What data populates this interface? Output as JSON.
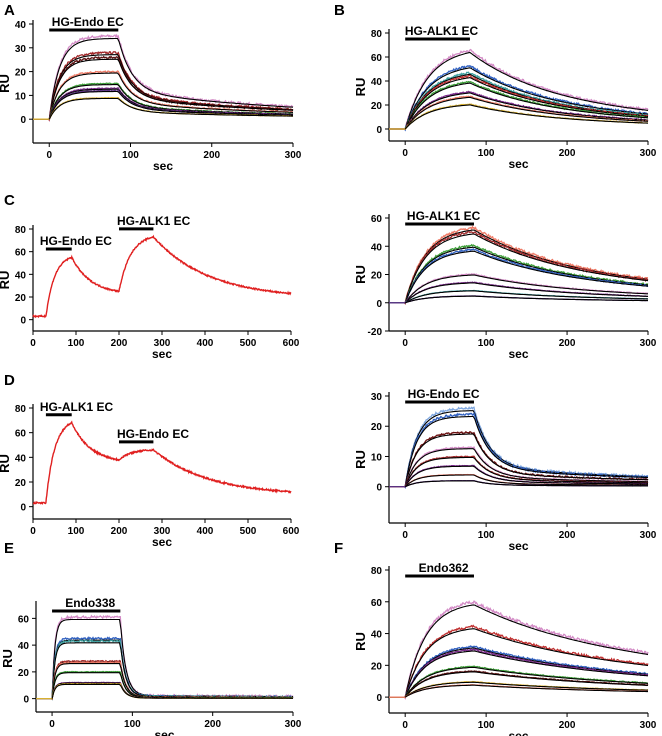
{
  "chart_data": [
    {
      "panel": "A",
      "type": "line",
      "xlabel": "sec",
      "ylabel": "RU",
      "xlim": [
        -20,
        300
      ],
      "ylim": [
        -10,
        40
      ],
      "xticks": [
        0,
        100,
        200,
        300
      ],
      "yticks": [
        0,
        10,
        20,
        30,
        40
      ],
      "injections": [
        {
          "label": "HG-Endo EC",
          "start": 0,
          "end": 85
        }
      ],
      "series": [
        {
          "color": "#d38bc6",
          "rmax": 35
        },
        {
          "color": "#a0282a",
          "rmax": 28
        },
        {
          "color": "#5a1010",
          "rmax": 26
        },
        {
          "color": "#ee7a66",
          "rmax": 20
        },
        {
          "color": "#3f9f3a",
          "rmax": 15
        },
        {
          "color": "#7a2a8a",
          "rmax": 13
        },
        {
          "color": "#5a3080",
          "rmax": 12
        },
        {
          "color": "#d8b030",
          "rmax": 9
        }
      ],
      "kinetics": {
        "ka": 0.08,
        "kd_fast": 0.06,
        "kd_slow": 0.004,
        "slow_fraction": 0.35
      }
    },
    {
      "panel": "B",
      "type": "line",
      "xlabel": "sec",
      "ylabel": "RU",
      "xlim": [
        -20,
        300
      ],
      "ylim": [
        -10,
        80
      ],
      "xticks": [
        0,
        100,
        200,
        300
      ],
      "yticks": [
        0,
        20,
        40,
        60,
        80
      ],
      "injections": [
        {
          "label": "HG-ALK1 EC",
          "start": 0,
          "end": 80
        }
      ],
      "series": [
        {
          "color": "#d38bc6",
          "rmax": 70
        },
        {
          "color": "#3060c0",
          "rmax": 56
        },
        {
          "color": "#40a0a0",
          "rmax": 50
        },
        {
          "color": "#c03030",
          "rmax": 47
        },
        {
          "color": "#3f9f3a",
          "rmax": 42
        },
        {
          "color": "#7a2a8a",
          "rmax": 33
        },
        {
          "color": "#ee7a66",
          "rmax": 29
        },
        {
          "color": "#d8b030",
          "rmax": 22
        }
      ],
      "kinetics": {
        "ka": 0.035,
        "kd_fast": 0.012,
        "kd_slow": 0.004,
        "slow_fraction": 0.5
      }
    },
    {
      "panel": "C",
      "type": "line",
      "xlabel": "sec",
      "ylabel": "RU",
      "xlim": [
        0,
        600
      ],
      "ylim": [
        -10,
        80
      ],
      "xticks": [
        0,
        100,
        200,
        300,
        400,
        500,
        600
      ],
      "yticks": [
        0,
        20,
        40,
        60,
        80
      ],
      "injections": [
        {
          "label": "HG-Endo EC",
          "start": 30,
          "end": 90
        },
        {
          "label": "HG-ALK1 EC",
          "start": 200,
          "end": 280
        }
      ],
      "trace": {
        "color": "#e02020",
        "points": [
          [
            0,
            3
          ],
          [
            30,
            3
          ],
          [
            90,
            55
          ],
          [
            200,
            25
          ],
          [
            280,
            73
          ],
          [
            600,
            23
          ]
        ]
      }
    },
    {
      "panel": "C-right",
      "type": "line",
      "xlabel": "sec",
      "ylabel": "RU",
      "xlim": [
        -20,
        300
      ],
      "ylim": [
        -20,
        60
      ],
      "xticks": [
        0,
        100,
        200,
        300
      ],
      "yticks": [
        -20,
        0,
        20,
        40,
        60
      ],
      "injections": [
        {
          "label": "HG-ALK1 EC",
          "start": 0,
          "end": 85
        }
      ],
      "series": [
        {
          "color": "#ee7a66",
          "rmax": 55
        },
        {
          "color": "#a0282a",
          "rmax": 52
        },
        {
          "color": "#3f9f3a",
          "rmax": 42
        },
        {
          "color": "#3060c0",
          "rmax": 39
        },
        {
          "color": "#d38bc6",
          "rmax": 21
        },
        {
          "color": "#7a2a8a",
          "rmax": 15
        },
        {
          "color": "#40a0a0",
          "rmax": 9
        },
        {
          "color": "#5a3080",
          "rmax": 5
        }
      ],
      "kinetics": {
        "ka": 0.04,
        "kd_fast": 0.01,
        "kd_slow": 0.003,
        "slow_fraction": 0.5
      }
    },
    {
      "panel": "D",
      "type": "line",
      "xlabel": "sec",
      "ylabel": "RU",
      "xlim": [
        0,
        600
      ],
      "ylim": [
        -10,
        80
      ],
      "xticks": [
        0,
        100,
        200,
        300,
        400,
        500,
        600
      ],
      "yticks": [
        0,
        20,
        40,
        60,
        80
      ],
      "injections": [
        {
          "label": "HG-ALK1 EC",
          "start": 30,
          "end": 90
        },
        {
          "label": "HG-Endo EC",
          "start": 200,
          "end": 280
        }
      ],
      "trace": {
        "color": "#e02020",
        "points": [
          [
            0,
            3
          ],
          [
            30,
            3
          ],
          [
            90,
            68
          ],
          [
            200,
            38
          ],
          [
            280,
            46
          ],
          [
            600,
            12
          ]
        ]
      }
    },
    {
      "panel": "D-right",
      "type": "line",
      "xlabel": "sec",
      "ylabel": "RU",
      "xlim": [
        -20,
        300
      ],
      "ylim": [
        -12,
        30
      ],
      "xticks": [
        0,
        100,
        200,
        300
      ],
      "yticks": [
        0,
        10,
        20,
        30
      ],
      "injections": [
        {
          "label": "HG-Endo EC",
          "start": 0,
          "end": 85
        }
      ],
      "series": [
        {
          "color": "#80a8e0",
          "rmax": 26
        },
        {
          "color": "#3060c0",
          "rmax": 24
        },
        {
          "color": "#6a1010",
          "rmax": 18
        },
        {
          "color": "#d38bc6",
          "rmax": 13
        },
        {
          "color": "#a0282a",
          "rmax": 10
        },
        {
          "color": "#7a2a8a",
          "rmax": 7
        },
        {
          "color": "#ee7a66",
          "rmax": 4
        },
        {
          "color": "#5a3080",
          "rmax": 2
        }
      ],
      "kinetics": {
        "ka": 0.07,
        "kd_fast": 0.05,
        "kd_slow": 0.003,
        "slow_fraction": 0.25
      }
    },
    {
      "panel": "E",
      "type": "line",
      "xlabel": "sec",
      "ylabel": "RU",
      "xlim": [
        -20,
        300
      ],
      "ylim": [
        -10,
        70
      ],
      "xticks": [
        0,
        100,
        200,
        300
      ],
      "yticks": [
        0,
        20,
        40,
        60
      ],
      "injections": [
        {
          "label": "Endo338",
          "start": 0,
          "end": 85
        }
      ],
      "series": [
        {
          "color": "#d38bc6",
          "rmax": 61
        },
        {
          "color": "#3060c0",
          "rmax": 45
        },
        {
          "color": "#40a0a0",
          "rmax": 43
        },
        {
          "color": "#a0282a",
          "rmax": 28
        },
        {
          "color": "#ee7a66",
          "rmax": 27
        },
        {
          "color": "#3f9f3a",
          "rmax": 20
        },
        {
          "color": "#7a2a8a",
          "rmax": 12
        },
        {
          "color": "#d8b030",
          "rmax": 11
        }
      ],
      "kinetics": {
        "ka": 0.3,
        "kd_fast": 0.15,
        "kd_slow": 0.002,
        "slow_fraction": 0.04
      }
    },
    {
      "panel": "F",
      "type": "line",
      "xlabel": "sec",
      "ylabel": "RU",
      "xlim": [
        -20,
        300
      ],
      "ylim": [
        -10,
        80
      ],
      "xticks": [
        0,
        100,
        200,
        300
      ],
      "yticks": [
        0,
        20,
        40,
        60,
        80
      ],
      "injections": [
        {
          "label": "Endo362",
          "start": 0,
          "end": 85
        }
      ],
      "series": [
        {
          "color": "#d38bc6",
          "rmax": 62
        },
        {
          "color": "#c03030",
          "rmax": 46
        },
        {
          "color": "#3060c0",
          "rmax": 33
        },
        {
          "color": "#7a2a8a",
          "rmax": 31
        },
        {
          "color": "#3f9f3a",
          "rmax": 20
        },
        {
          "color": "#5a1010",
          "rmax": 17
        },
        {
          "color": "#d8b030",
          "rmax": 10
        },
        {
          "color": "#ee7a66",
          "rmax": 8
        }
      ],
      "kinetics": {
        "ka": 0.04,
        "kd_fast": 0.008,
        "kd_slow": 0.002,
        "slow_fraction": 0.6
      }
    }
  ],
  "panel_letters": {
    "A": "A",
    "B": "B",
    "C": "C",
    "D": "D",
    "E": "E",
    "F": "F"
  }
}
